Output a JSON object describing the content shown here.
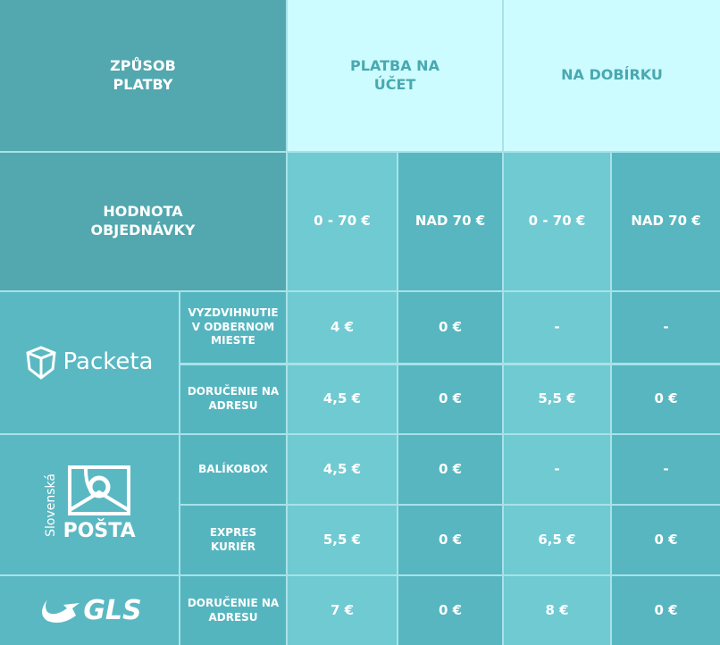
{
  "header": {
    "payment_method": "ZPŮSOB PLATBY",
    "on_account": "PLATBA NA ÚČET",
    "cod": "NA DOBÍRKU",
    "order_value": "HODNOTA OBJEDNÁVKY",
    "ranges": [
      "0 - 70 €",
      "NAD 70 €",
      "0 - 70 €",
      "NAD 70 €"
    ]
  },
  "carriers": [
    {
      "name": "Packeta",
      "rows": [
        {
          "service": "VYZDVIHNUTIE V ODBERNOM MIESTE",
          "values": [
            "4 €",
            "0 €",
            "-",
            "-"
          ]
        },
        {
          "service": "DORUČENIE NA ADRESU",
          "values": [
            "4,5 €",
            "0 €",
            "5,5 €",
            "0 €"
          ]
        }
      ]
    },
    {
      "name": "POŠTA",
      "subname": "Slovenská",
      "rows": [
        {
          "service": "BALÍKOBOX",
          "values": [
            "4,5 €",
            "0 €",
            "-",
            "-"
          ]
        },
        {
          "service": "EXPRES KURIÉR",
          "values": [
            "5,5 €",
            "0 €",
            "6,5 €",
            "0 €"
          ]
        }
      ]
    },
    {
      "name": "GLS",
      "rows": [
        {
          "service": "DORUČENIE NA ADRESU",
          "values": [
            "7 €",
            "0 €",
            "8 €",
            "0 €"
          ]
        }
      ]
    }
  ]
}
